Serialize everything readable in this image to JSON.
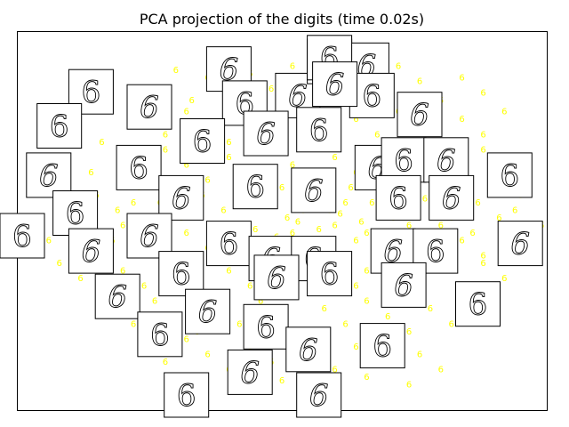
{
  "chart_data": {
    "type": "scatter",
    "title": "PCA projection of the digits (time 0.02s)",
    "xlabel": "",
    "ylabel": "",
    "axes_ticks": "none",
    "grid": false,
    "point_label": "6",
    "point_color": "#ffff00",
    "thumbnail_digit": "6",
    "xlim": [
      0,
      1
    ],
    "ylim": [
      0,
      1
    ],
    "points": [
      [
        0.27,
        0.84
      ],
      [
        0.3,
        0.89
      ],
      [
        0.33,
        0.81
      ],
      [
        0.36,
        0.87
      ],
      [
        0.4,
        0.83
      ],
      [
        0.44,
        0.88
      ],
      [
        0.48,
        0.84
      ],
      [
        0.52,
        0.9
      ],
      [
        0.56,
        0.86
      ],
      [
        0.6,
        0.82
      ],
      [
        0.64,
        0.88
      ],
      [
        0.68,
        0.84
      ],
      [
        0.72,
        0.9
      ],
      [
        0.76,
        0.86
      ],
      [
        0.8,
        0.81
      ],
      [
        0.84,
        0.87
      ],
      [
        0.88,
        0.83
      ],
      [
        0.24,
        0.76
      ],
      [
        0.28,
        0.72
      ],
      [
        0.32,
        0.78
      ],
      [
        0.36,
        0.74
      ],
      [
        0.4,
        0.7
      ],
      [
        0.44,
        0.76
      ],
      [
        0.48,
        0.72
      ],
      [
        0.52,
        0.78
      ],
      [
        0.56,
        0.74
      ],
      [
        0.6,
        0.7
      ],
      [
        0.64,
        0.76
      ],
      [
        0.68,
        0.72
      ],
      [
        0.72,
        0.78
      ],
      [
        0.76,
        0.74
      ],
      [
        0.8,
        0.7
      ],
      [
        0.84,
        0.76
      ],
      [
        0.88,
        0.72
      ],
      [
        0.92,
        0.78
      ],
      [
        0.2,
        0.66
      ],
      [
        0.24,
        0.62
      ],
      [
        0.28,
        0.68
      ],
      [
        0.32,
        0.64
      ],
      [
        0.36,
        0.6
      ],
      [
        0.4,
        0.66
      ],
      [
        0.44,
        0.62
      ],
      [
        0.48,
        0.68
      ],
      [
        0.52,
        0.64
      ],
      [
        0.56,
        0.6
      ],
      [
        0.6,
        0.66
      ],
      [
        0.64,
        0.62
      ],
      [
        0.68,
        0.68
      ],
      [
        0.72,
        0.64
      ],
      [
        0.76,
        0.6
      ],
      [
        0.8,
        0.66
      ],
      [
        0.84,
        0.62
      ],
      [
        0.88,
        0.68
      ],
      [
        0.92,
        0.64
      ],
      [
        0.96,
        0.6
      ],
      [
        0.15,
        0.56
      ],
      [
        0.19,
        0.52
      ],
      [
        0.23,
        0.58
      ],
      [
        0.27,
        0.54
      ],
      [
        0.31,
        0.5
      ],
      [
        0.35,
        0.56
      ],
      [
        0.39,
        0.52
      ],
      [
        0.43,
        0.58
      ],
      [
        0.47,
        0.54
      ],
      [
        0.51,
        0.5
      ],
      [
        0.55,
        0.56
      ],
      [
        0.59,
        0.52
      ],
      [
        0.63,
        0.58
      ],
      [
        0.67,
        0.54
      ],
      [
        0.71,
        0.5
      ],
      [
        0.75,
        0.56
      ],
      [
        0.79,
        0.52
      ],
      [
        0.83,
        0.58
      ],
      [
        0.87,
        0.54
      ],
      [
        0.91,
        0.5
      ],
      [
        0.95,
        0.56
      ],
      [
        0.12,
        0.46
      ],
      [
        0.16,
        0.42
      ],
      [
        0.2,
        0.48
      ],
      [
        0.24,
        0.44
      ],
      [
        0.28,
        0.4
      ],
      [
        0.32,
        0.46
      ],
      [
        0.36,
        0.42
      ],
      [
        0.4,
        0.48
      ],
      [
        0.44,
        0.44
      ],
      [
        0.48,
        0.4
      ],
      [
        0.52,
        0.46
      ],
      [
        0.56,
        0.42
      ],
      [
        0.6,
        0.48
      ],
      [
        0.64,
        0.44
      ],
      [
        0.68,
        0.4
      ],
      [
        0.72,
        0.46
      ],
      [
        0.76,
        0.42
      ],
      [
        0.8,
        0.48
      ],
      [
        0.84,
        0.44
      ],
      [
        0.88,
        0.4
      ],
      [
        0.92,
        0.46
      ],
      [
        0.96,
        0.42
      ],
      [
        0.08,
        0.38
      ],
      [
        0.12,
        0.34
      ],
      [
        0.16,
        0.3
      ],
      [
        0.2,
        0.36
      ],
      [
        0.24,
        0.32
      ],
      [
        0.28,
        0.38
      ],
      [
        0.32,
        0.34
      ],
      [
        0.36,
        0.3
      ],
      [
        0.4,
        0.36
      ],
      [
        0.44,
        0.32
      ],
      [
        0.48,
        0.38
      ],
      [
        0.52,
        0.34
      ],
      [
        0.56,
        0.3
      ],
      [
        0.6,
        0.36
      ],
      [
        0.64,
        0.32
      ],
      [
        0.68,
        0.38
      ],
      [
        0.72,
        0.34
      ],
      [
        0.76,
        0.3
      ],
      [
        0.8,
        0.36
      ],
      [
        0.84,
        0.32
      ],
      [
        0.88,
        0.38
      ],
      [
        0.92,
        0.34
      ],
      [
        0.18,
        0.26
      ],
      [
        0.22,
        0.22
      ],
      [
        0.26,
        0.28
      ],
      [
        0.3,
        0.24
      ],
      [
        0.34,
        0.2
      ],
      [
        0.38,
        0.26
      ],
      [
        0.42,
        0.22
      ],
      [
        0.46,
        0.28
      ],
      [
        0.5,
        0.24
      ],
      [
        0.54,
        0.2
      ],
      [
        0.58,
        0.26
      ],
      [
        0.62,
        0.22
      ],
      [
        0.66,
        0.28
      ],
      [
        0.7,
        0.24
      ],
      [
        0.74,
        0.2
      ],
      [
        0.78,
        0.26
      ],
      [
        0.82,
        0.22
      ],
      [
        0.86,
        0.28
      ],
      [
        0.24,
        0.16
      ],
      [
        0.28,
        0.12
      ],
      [
        0.32,
        0.18
      ],
      [
        0.36,
        0.14
      ],
      [
        0.4,
        0.1
      ],
      [
        0.44,
        0.16
      ],
      [
        0.48,
        0.12
      ],
      [
        0.52,
        0.18
      ],
      [
        0.56,
        0.14
      ],
      [
        0.6,
        0.1
      ],
      [
        0.64,
        0.16
      ],
      [
        0.68,
        0.12
      ],
      [
        0.72,
        0.18
      ],
      [
        0.76,
        0.14
      ],
      [
        0.8,
        0.1
      ],
      [
        0.34,
        0.08
      ],
      [
        0.42,
        0.06
      ],
      [
        0.5,
        0.07
      ],
      [
        0.58,
        0.05
      ],
      [
        0.66,
        0.08
      ],
      [
        0.74,
        0.06
      ],
      [
        0.16,
        0.7
      ],
      [
        0.14,
        0.62
      ],
      [
        0.1,
        0.52
      ],
      [
        0.06,
        0.44
      ],
      [
        0.04,
        0.4
      ],
      [
        0.3,
        0.58
      ],
      [
        0.34,
        0.66
      ],
      [
        0.42,
        0.54
      ],
      [
        0.46,
        0.6
      ],
      [
        0.5,
        0.58
      ],
      [
        0.54,
        0.52
      ],
      [
        0.58,
        0.62
      ],
      [
        0.62,
        0.54
      ],
      [
        0.66,
        0.46
      ],
      [
        0.7,
        0.58
      ],
      [
        0.74,
        0.48
      ],
      [
        0.78,
        0.4
      ],
      [
        0.82,
        0.5
      ],
      [
        0.86,
        0.46
      ],
      [
        0.9,
        0.58
      ],
      [
        0.94,
        0.52
      ],
      [
        0.99,
        0.48
      ],
      [
        0.26,
        0.5
      ],
      [
        0.22,
        0.54
      ],
      [
        0.18,
        0.44
      ],
      [
        0.38,
        0.38
      ],
      [
        0.42,
        0.4
      ],
      [
        0.46,
        0.36
      ],
      [
        0.5,
        0.42
      ],
      [
        0.54,
        0.38
      ],
      [
        0.58,
        0.44
      ],
      [
        0.62,
        0.4
      ],
      [
        0.66,
        0.36
      ],
      [
        0.7,
        0.42
      ],
      [
        0.74,
        0.38
      ],
      [
        0.37,
        0.45
      ],
      [
        0.41,
        0.43
      ],
      [
        0.45,
        0.47
      ],
      [
        0.49,
        0.45
      ],
      [
        0.53,
        0.49
      ],
      [
        0.57,
        0.47
      ],
      [
        0.61,
        0.51
      ],
      [
        0.65,
        0.49
      ],
      [
        0.69,
        0.53
      ],
      [
        0.73,
        0.51
      ],
      [
        0.77,
        0.55
      ]
    ],
    "thumbnails": [
      [
        0.14,
        0.84
      ],
      [
        0.25,
        0.8
      ],
      [
        0.08,
        0.75
      ],
      [
        0.4,
        0.9
      ],
      [
        0.43,
        0.81
      ],
      [
        0.53,
        0.83
      ],
      [
        0.59,
        0.92
      ],
      [
        0.66,
        0.91
      ],
      [
        0.67,
        0.83
      ],
      [
        0.76,
        0.78
      ],
      [
        0.35,
        0.71
      ],
      [
        0.47,
        0.73
      ],
      [
        0.57,
        0.74
      ],
      [
        0.68,
        0.64
      ],
      [
        0.73,
        0.66
      ],
      [
        0.81,
        0.66
      ],
      [
        0.93,
        0.62
      ],
      [
        0.06,
        0.62
      ],
      [
        0.23,
        0.64
      ],
      [
        0.31,
        0.56
      ],
      [
        0.45,
        0.59
      ],
      [
        0.56,
        0.58
      ],
      [
        0.72,
        0.56
      ],
      [
        0.82,
        0.56
      ],
      [
        0.11,
        0.52
      ],
      [
        0.25,
        0.46
      ],
      [
        0.4,
        0.44
      ],
      [
        0.48,
        0.4
      ],
      [
        0.56,
        0.4
      ],
      [
        0.71,
        0.42
      ],
      [
        0.79,
        0.42
      ],
      [
        0.95,
        0.44
      ],
      [
        0.01,
        0.46
      ],
      [
        0.14,
        0.42
      ],
      [
        0.31,
        0.36
      ],
      [
        0.49,
        0.35
      ],
      [
        0.59,
        0.36
      ],
      [
        0.73,
        0.33
      ],
      [
        0.87,
        0.28
      ],
      [
        0.19,
        0.3
      ],
      [
        0.27,
        0.2
      ],
      [
        0.36,
        0.26
      ],
      [
        0.47,
        0.22
      ],
      [
        0.55,
        0.16
      ],
      [
        0.69,
        0.17
      ],
      [
        0.44,
        0.1
      ],
      [
        0.32,
        0.04
      ],
      [
        0.57,
        0.04
      ],
      [
        0.59,
        0.93
      ],
      [
        0.6,
        0.86
      ]
    ]
  }
}
